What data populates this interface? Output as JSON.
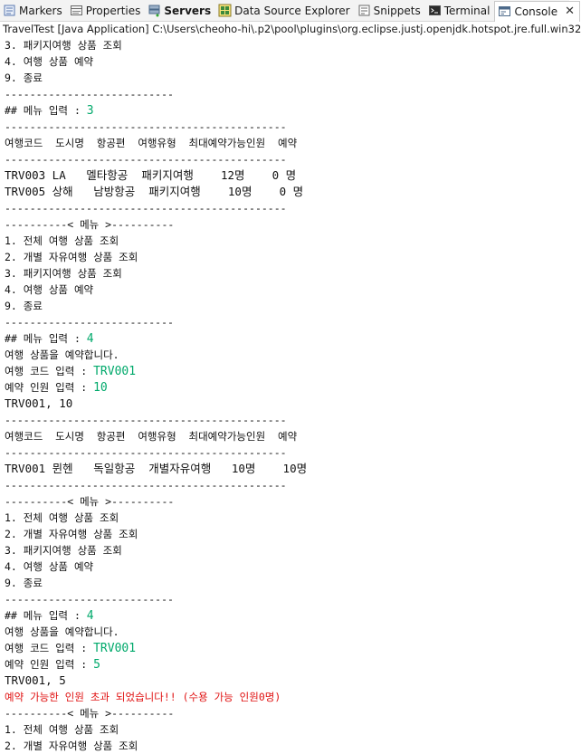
{
  "tabs": [
    {
      "label": "Markers",
      "icon": "markers-icon",
      "active": false,
      "bold": false
    },
    {
      "label": "Properties",
      "icon": "properties-icon",
      "active": false,
      "bold": false
    },
    {
      "label": "Servers",
      "icon": "servers-icon",
      "active": false,
      "bold": true
    },
    {
      "label": "Data Source Explorer",
      "icon": "data-source-explorer-icon",
      "active": false,
      "bold": false
    },
    {
      "label": "Snippets",
      "icon": "snippets-icon",
      "active": false,
      "bold": false
    },
    {
      "label": "Terminal",
      "icon": "terminal-icon",
      "active": false,
      "bold": false
    },
    {
      "label": "Console",
      "icon": "console-icon",
      "active": true,
      "bold": false
    }
  ],
  "console_title": "TravelTest [Java Application] C:\\Users\\cheoho-hi\\.p2\\pool\\plugins\\org.eclipse.justj.openjdk.hotspot.jre.full.win32",
  "console_lines": [
    {
      "segments": [
        {
          "text": "3. 패키지여행 상품 조회"
        }
      ]
    },
    {
      "segments": [
        {
          "text": "4. 여행 상품 예약"
        }
      ]
    },
    {
      "segments": [
        {
          "text": "9. 종료"
        }
      ]
    },
    {
      "segments": [
        {
          "text": "---------------------------"
        }
      ]
    },
    {
      "segments": [
        {
          "text": "## 메뉴 입력 : "
        },
        {
          "text": "3",
          "type": "input"
        }
      ]
    },
    {
      "segments": [
        {
          "text": "---------------------------------------------"
        }
      ]
    },
    {
      "segments": [
        {
          "text": "여행코드  도시명  항공편  여행유형  최대예약가능인원  예약"
        }
      ]
    },
    {
      "segments": [
        {
          "text": "---------------------------------------------"
        }
      ]
    },
    {
      "big": true,
      "segments": [
        {
          "text": "TRV003 LA   멜타항공  패키지여행    12명    0 명"
        }
      ]
    },
    {
      "big": true,
      "segments": [
        {
          "text": "TRV005 상해   남방항공  패키지여행    10명    0 명"
        }
      ]
    },
    {
      "segments": [
        {
          "text": "---------------------------------------------"
        }
      ]
    },
    {
      "segments": [
        {
          "text": "----------< 메뉴 >----------"
        }
      ]
    },
    {
      "segments": [
        {
          "text": "1. 전체 여행 상품 조회"
        }
      ]
    },
    {
      "segments": [
        {
          "text": "2. 개별 자유여행 상품 조회"
        }
      ]
    },
    {
      "segments": [
        {
          "text": "3. 패키지여행 상품 조회"
        }
      ]
    },
    {
      "segments": [
        {
          "text": "4. 여행 상품 예약"
        }
      ]
    },
    {
      "segments": [
        {
          "text": "9. 종료"
        }
      ]
    },
    {
      "segments": [
        {
          "text": "---------------------------"
        }
      ]
    },
    {
      "segments": [
        {
          "text": "## 메뉴 입력 : "
        },
        {
          "text": "4",
          "type": "input"
        }
      ]
    },
    {
      "segments": [
        {
          "text": "여행 상품을 예약합니다."
        }
      ]
    },
    {
      "segments": [
        {
          "text": "여행 코드 입력 : "
        },
        {
          "text": "TRV001",
          "type": "input"
        }
      ]
    },
    {
      "segments": [
        {
          "text": "예약 인원 입력 : "
        },
        {
          "text": "10",
          "type": "input"
        }
      ]
    },
    {
      "big": true,
      "segments": [
        {
          "text": "TRV001, 10"
        }
      ]
    },
    {
      "segments": [
        {
          "text": "---------------------------------------------"
        }
      ]
    },
    {
      "segments": [
        {
          "text": "여행코드  도시명  항공편  여행유형  최대예약가능인원  예약"
        }
      ]
    },
    {
      "segments": [
        {
          "text": "---------------------------------------------"
        }
      ]
    },
    {
      "big": true,
      "segments": [
        {
          "text": "TRV001 뮌헨   독일항공  개별자유여행   10명    10명"
        }
      ]
    },
    {
      "segments": [
        {
          "text": "---------------------------------------------"
        }
      ]
    },
    {
      "segments": [
        {
          "text": "----------< 메뉴 >----------"
        }
      ]
    },
    {
      "segments": [
        {
          "text": "1. 전체 여행 상품 조회"
        }
      ]
    },
    {
      "segments": [
        {
          "text": "2. 개별 자유여행 상품 조회"
        }
      ]
    },
    {
      "segments": [
        {
          "text": "3. 패키지여행 상품 조회"
        }
      ]
    },
    {
      "segments": [
        {
          "text": "4. 여행 상품 예약"
        }
      ]
    },
    {
      "segments": [
        {
          "text": "9. 종료"
        }
      ]
    },
    {
      "segments": [
        {
          "text": "---------------------------"
        }
      ]
    },
    {
      "segments": [
        {
          "text": "## 메뉴 입력 : "
        },
        {
          "text": "4",
          "type": "input"
        }
      ]
    },
    {
      "segments": [
        {
          "text": "여행 상품을 예약합니다."
        }
      ]
    },
    {
      "segments": [
        {
          "text": "여행 코드 입력 : "
        },
        {
          "text": "TRV001",
          "type": "input"
        }
      ]
    },
    {
      "segments": [
        {
          "text": "예약 인원 입력 : "
        },
        {
          "text": "5",
          "type": "input"
        }
      ]
    },
    {
      "big": true,
      "segments": [
        {
          "text": "TRV001, 5"
        }
      ]
    },
    {
      "segments": [
        {
          "text": "예약 가능한 인원 초과 되었습니다!! (수용 가능 인원0명)",
          "type": "error"
        }
      ]
    },
    {
      "segments": [
        {
          "text": "----------< 메뉴 >----------"
        }
      ]
    },
    {
      "segments": [
        {
          "text": "1. 전체 여행 상품 조회"
        }
      ]
    },
    {
      "segments": [
        {
          "text": "2. 개별 자유여행 상품 조회"
        }
      ]
    }
  ],
  "colors": {
    "input": "#00a96b",
    "error": "#e01010"
  }
}
